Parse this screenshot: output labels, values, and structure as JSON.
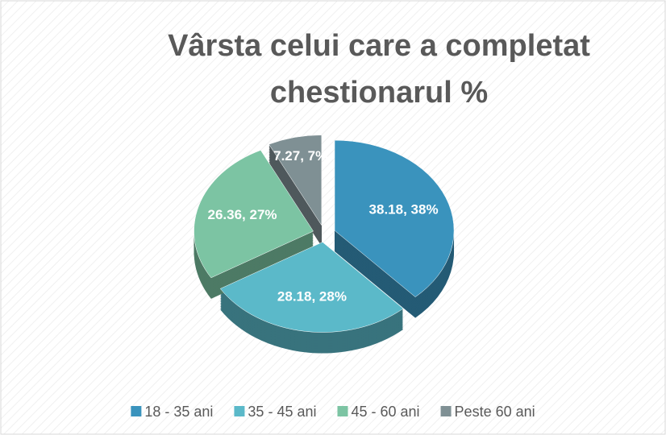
{
  "chart_data": {
    "type": "pie",
    "title": "Vârsta celui care a completat chestionarul %",
    "categories": [
      "18 - 35 ani",
      "35 - 45 ani",
      "45 - 60 ani",
      "Peste 60 ani"
    ],
    "values": [
      38.18,
      28.18,
      26.36,
      7.27
    ],
    "value_labels": [
      "38.18, 38%",
      "28.18, 28%",
      "26.36, 27%",
      "7.27, 7%"
    ],
    "colors": [
      "#3a93bd",
      "#5bb9c9",
      "#7cc4a3",
      "#7f9094"
    ],
    "legend": "bottom"
  }
}
